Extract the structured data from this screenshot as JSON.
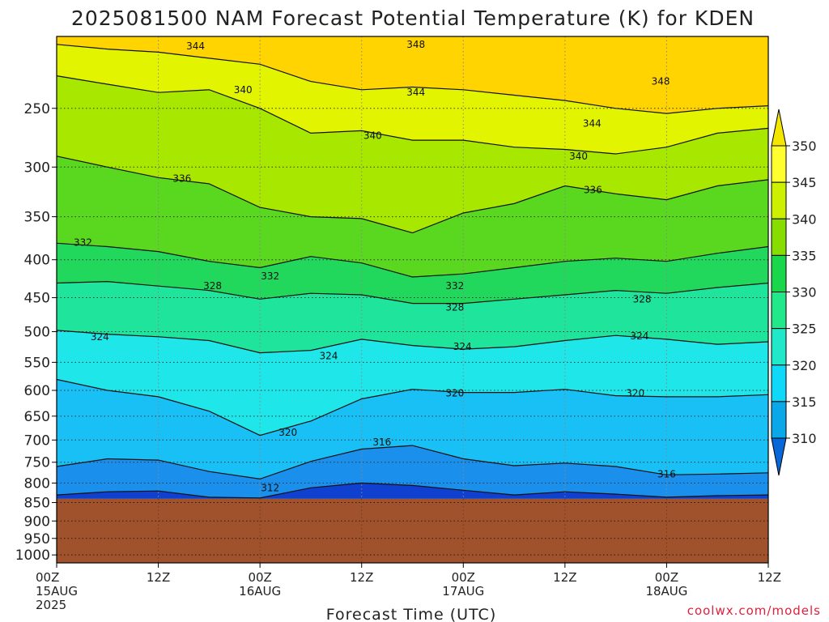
{
  "chart_data": {
    "type": "heatmap",
    "title": "2025081500 NAM Forecast Potential Temperature (K) for KDEN",
    "xlabel": "Forecast Time (UTC)",
    "ylabel": "",
    "credit": "coolwx.com/models",
    "x_ticks": [
      {
        "hour": 0,
        "lines": [
          "00Z",
          "15AUG",
          "2025"
        ]
      },
      {
        "hour": 12,
        "lines": [
          "12Z"
        ]
      },
      {
        "hour": 24,
        "lines": [
          "00Z",
          "16AUG"
        ]
      },
      {
        "hour": 36,
        "lines": [
          "12Z"
        ]
      },
      {
        "hour": 48,
        "lines": [
          "00Z",
          "17AUG"
        ]
      },
      {
        "hour": 60,
        "lines": [
          "12Z"
        ]
      },
      {
        "hour": 72,
        "lines": [
          "00Z",
          "18AUG"
        ]
      },
      {
        "hour": 84,
        "lines": [
          "12Z"
        ]
      }
    ],
    "xlim": [
      0,
      84
    ],
    "y_ticks": [
      "250",
      "300",
      "350",
      "400",
      "450",
      "500",
      "550",
      "600",
      "650",
      "700",
      "750",
      "800",
      "850",
      "900",
      "950",
      "1000"
    ],
    "y_tick_values": [
      250,
      300,
      350,
      400,
      450,
      500,
      550,
      600,
      650,
      700,
      750,
      800,
      850,
      900,
      950,
      1000
    ],
    "ylim": [
      200,
      1025
    ],
    "y_scale": "log",
    "y_units": "hPa",
    "surface_pressure": 840,
    "colorbar": {
      "labels": [
        "350",
        "345",
        "340",
        "335",
        "330",
        "325",
        "320",
        "315",
        "310"
      ],
      "levels": [
        350,
        345,
        340,
        335,
        330,
        325,
        320,
        315,
        310
      ],
      "colors": [
        "#f5e600",
        "#ffff30",
        "#ccf000",
        "#88dd00",
        "#1ad64a",
        "#22e88a",
        "#20e8c8",
        "#10d8f8",
        "#0aa8e8",
        "#0868d8"
      ]
    },
    "band_colors": {
      "below_310": "#1040d0",
      "310_315": "#1a90ec",
      "315_320": "#18c0f6",
      "320_325": "#1fe6e8",
      "325_330": "#1ee49c",
      "330_335": "#22d85c",
      "335_340": "#5ad820",
      "340_345": "#a8e800",
      "345_350": "#e2f400",
      "above_350": "#ffd400",
      "ground": "#a0522d"
    },
    "series": [
      {
        "name": "344",
        "x": [
          0,
          6,
          12,
          18,
          24,
          30,
          36,
          42,
          48,
          54,
          60,
          66,
          72,
          78,
          84
        ],
        "values": [
          205,
          208,
          210,
          214,
          218,
          230,
          236,
          234,
          236,
          240,
          244,
          250,
          254,
          250,
          248
        ]
      },
      {
        "name": "340",
        "x": [
          0,
          6,
          12,
          18,
          24,
          30,
          36,
          42,
          48,
          54,
          60,
          66,
          72,
          78,
          84
        ],
        "values": [
          226,
          232,
          238,
          236,
          250,
          270,
          268,
          276,
          276,
          282,
          284,
          288,
          282,
          270,
          266
        ]
      },
      {
        "name": "336",
        "x": [
          0,
          6,
          12,
          18,
          24,
          30,
          36,
          42,
          48,
          54,
          60,
          66,
          72,
          78,
          84
        ],
        "values": [
          290,
          300,
          310,
          316,
          340,
          350,
          352,
          368,
          346,
          336,
          318,
          326,
          332,
          318,
          312
        ]
      },
      {
        "name": "332",
        "x": [
          0,
          6,
          12,
          18,
          24,
          30,
          36,
          42,
          48,
          54,
          60,
          66,
          72,
          78,
          84
        ],
        "values": [
          380,
          384,
          390,
          402,
          410,
          396,
          404,
          422,
          418,
          410,
          402,
          398,
          402,
          392,
          384
        ]
      },
      {
        "name": "328",
        "x": [
          0,
          6,
          12,
          18,
          24,
          30,
          36,
          42,
          48,
          54,
          60,
          66,
          72,
          78,
          84
        ],
        "values": [
          430,
          428,
          434,
          440,
          452,
          444,
          446,
          458,
          458,
          452,
          446,
          440,
          444,
          436,
          430
        ]
      },
      {
        "name": "324",
        "x": [
          0,
          6,
          12,
          18,
          24,
          30,
          36,
          42,
          48,
          54,
          60,
          66,
          72,
          78,
          84
        ],
        "values": [
          498,
          504,
          508,
          514,
          534,
          530,
          512,
          522,
          528,
          524,
          514,
          506,
          512,
          520,
          516
        ]
      },
      {
        "name": "320",
        "x": [
          0,
          6,
          12,
          18,
          24,
          30,
          36,
          42,
          48,
          54,
          60,
          66,
          72,
          78,
          84
        ],
        "values": [
          580,
          600,
          612,
          640,
          690,
          660,
          616,
          598,
          604,
          604,
          598,
          610,
          612,
          612,
          608
        ]
      },
      {
        "name": "316",
        "x": [
          0,
          6,
          12,
          18,
          24,
          30,
          36,
          42,
          48,
          54,
          60,
          66,
          72,
          78,
          84
        ],
        "values": [
          760,
          742,
          745,
          772,
          790,
          748,
          720,
          712,
          742,
          758,
          752,
          760,
          780,
          778,
          775
        ]
      },
      {
        "name": "312",
        "x": [
          0,
          6,
          12,
          18,
          24,
          30,
          36,
          42,
          48,
          54,
          60,
          66,
          72,
          78,
          84
        ],
        "values": [
          830,
          822,
          820,
          836,
          838,
          812,
          800,
          806,
          818,
          830,
          822,
          828,
          836,
          832,
          830
        ]
      }
    ],
    "contour_labels": [
      {
        "text": "344",
        "hour": 16.4,
        "p": 206
      },
      {
        "text": "348",
        "hour": 42.4,
        "p": 205
      },
      {
        "text": "348",
        "hour": 71.3,
        "p": 230
      },
      {
        "text": "340",
        "hour": 22,
        "p": 236
      },
      {
        "text": "344",
        "hour": 42.4,
        "p": 238
      },
      {
        "text": "340",
        "hour": 37.3,
        "p": 272
      },
      {
        "text": "344",
        "hour": 63.2,
        "p": 262
      },
      {
        "text": "336",
        "hour": 14.8,
        "p": 311
      },
      {
        "text": "340",
        "hour": 61.6,
        "p": 290
      },
      {
        "text": "336",
        "hour": 63.3,
        "p": 322
      },
      {
        "text": "332",
        "hour": 3.1,
        "p": 379
      },
      {
        "text": "332",
        "hour": 25.2,
        "p": 421
      },
      {
        "text": "328",
        "hour": 18.4,
        "p": 434
      },
      {
        "text": "332",
        "hour": 47,
        "p": 434
      },
      {
        "text": "328",
        "hour": 47,
        "p": 464
      },
      {
        "text": "328",
        "hour": 69.1,
        "p": 452
      },
      {
        "text": "324",
        "hour": 5.1,
        "p": 508
      },
      {
        "text": "324",
        "hour": 32.1,
        "p": 539
      },
      {
        "text": "324",
        "hour": 47.9,
        "p": 524
      },
      {
        "text": "324",
        "hour": 68.8,
        "p": 507
      },
      {
        "text": "320",
        "hour": 47,
        "p": 605
      },
      {
        "text": "320",
        "hour": 68.3,
        "p": 605
      },
      {
        "text": "320",
        "hour": 27.3,
        "p": 684
      },
      {
        "text": "316",
        "hour": 38.4,
        "p": 705
      },
      {
        "text": "316",
        "hour": 72,
        "p": 778
      },
      {
        "text": "312",
        "hour": 25.2,
        "p": 812
      }
    ]
  }
}
